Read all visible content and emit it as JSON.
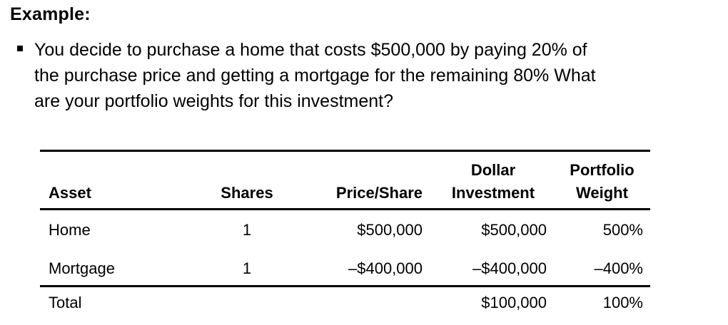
{
  "heading": "Example:",
  "bullet": {
    "lines": [
      "You decide to purchase a home that costs $500,000 by paying 20% of",
      "the purchase price and getting a mortgage for the remaining 80%  What",
      "are your portfolio weights for this investment?"
    ]
  },
  "table": {
    "headers": {
      "asset": "Asset",
      "shares": "Shares",
      "price": "Price/Share",
      "dollar_top": "Dollar",
      "dollar_bottom": "Investment",
      "weight_top": "Portfolio",
      "weight_bottom": "Weight"
    },
    "rows": [
      {
        "asset": "Home",
        "shares": "1",
        "price": "$500,000",
        "investment": "$500,000",
        "weight": "500%"
      },
      {
        "asset": "Mortgage",
        "shares": "1",
        "price": "–$400,000",
        "investment": "–$400,000",
        "weight": "–400%"
      }
    ],
    "total": {
      "asset": "Total",
      "shares": "",
      "price": "",
      "investment": "$100,000",
      "weight": "100%"
    }
  }
}
